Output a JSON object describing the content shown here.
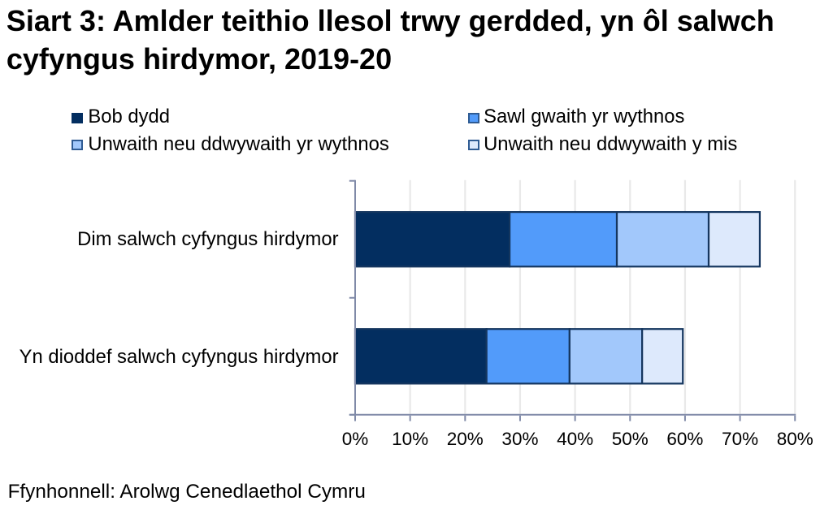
{
  "chart_data": {
    "type": "bar",
    "orientation": "horizontal",
    "stacked": true,
    "title": "Siart 3: Amlder teithio llesol trwy gerdded, yn ôl salwch cyfyngus hirdymor, 2019-20",
    "categories": [
      "Dim salwch cyfyngus hirdymor",
      "Yn dioddef salwch cyfyngus hirdymor"
    ],
    "series": [
      {
        "name": "Bob dydd",
        "color": "#032e60",
        "values": [
          28.1,
          23.9
        ]
      },
      {
        "name": "Sawl gwaith yr wythnos",
        "color": "#529bfa",
        "values": [
          19.5,
          15.1
        ]
      },
      {
        "name": "Unwaith neu ddwywaith yr wythnos",
        "color": "#a2c8fb",
        "values": [
          16.7,
          13.2
        ]
      },
      {
        "name": "Unwaith neu ddwywaith y mis",
        "color": "#dde9fc",
        "values": [
          9.3,
          7.4
        ]
      }
    ],
    "xlabel": "",
    "ylabel": "",
    "xlim": [
      0,
      80
    ],
    "x_tick_step": 10,
    "x_tick_labels": [
      "0%",
      "10%",
      "20%",
      "30%",
      "40%",
      "50%",
      "60%",
      "70%",
      "80%"
    ],
    "grid": true,
    "legend_position": "top",
    "source": "Ffynhonnell: Arolwg Cenedlaethol Cymru",
    "colors": {
      "bar_border": "#15365f",
      "axis": "#808aa8",
      "gridline": "#e9e9e9",
      "text": "#000000",
      "background": "#ffffff",
      "legend_swatch_border": "#2f5b93"
    }
  }
}
